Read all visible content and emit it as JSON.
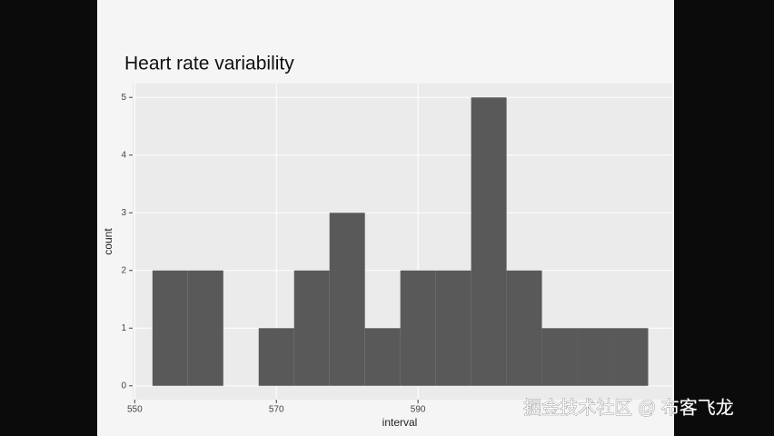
{
  "chart_data": {
    "type": "histogram",
    "title": "Heart rate variability",
    "x_label": "interval",
    "y_label": "count",
    "bins": [
      552.5,
      557.5,
      562.5,
      567.5,
      572.5,
      577.5,
      582.5,
      587.5,
      592.5,
      597.5,
      602.5,
      607.5,
      612.5,
      617.5,
      622.5
    ],
    "counts": [
      2,
      2,
      0,
      1,
      2,
      3,
      1,
      2,
      2,
      5,
      2,
      1,
      1,
      1
    ],
    "color": "#595959",
    "xlim": [
      549.7,
      625.9
    ],
    "xticks": [
      550,
      570,
      590
    ],
    "ylim": [
      -0.24,
      5.24
    ],
    "yticks": [
      0,
      1,
      2,
      3,
      4,
      5
    ],
    "grid": true
  },
  "watermark": "掘金技术社区 @ 布客飞龙"
}
